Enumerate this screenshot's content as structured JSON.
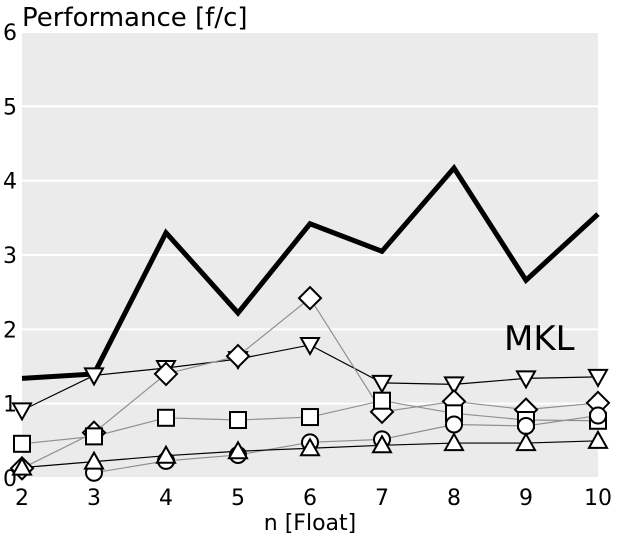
{
  "chart_data": {
    "type": "line",
    "title": "Performance [f/c]",
    "xlabel": "n [Float]",
    "ylabel": "",
    "xlim": [
      2,
      10
    ],
    "ylim": [
      0,
      6
    ],
    "xticks": [
      2,
      3,
      4,
      5,
      6,
      7,
      8,
      9,
      10
    ],
    "yticks": [
      0,
      1,
      2,
      3,
      4,
      5,
      6
    ],
    "grid": true,
    "background": "#ebebeb",
    "series": [
      {
        "name": "MKL",
        "marker": "none",
        "color": "#000000",
        "width": 5,
        "x": [
          2,
          3,
          4,
          5,
          6,
          7,
          8,
          9,
          10
        ],
        "y": [
          1.34,
          1.4,
          3.3,
          2.22,
          3.42,
          3.05,
          4.17,
          2.66,
          3.55
        ]
      },
      {
        "marker": "triangle-down",
        "color": "#000000",
        "width": 1.2,
        "x": [
          2,
          3,
          4,
          5,
          6,
          7,
          8,
          9,
          10
        ],
        "y": [
          0.91,
          1.38,
          1.48,
          1.6,
          1.79,
          1.28,
          1.26,
          1.34,
          1.36
        ]
      },
      {
        "marker": "diamond",
        "color": "#909090",
        "width": 1.2,
        "x": [
          2,
          3,
          4,
          5,
          6,
          7,
          8,
          9,
          10
        ],
        "y": [
          0.13,
          0.61,
          1.4,
          1.64,
          2.42,
          0.89,
          1.03,
          0.92,
          1.01
        ]
      },
      {
        "marker": "square",
        "color": "#909090",
        "width": 1.2,
        "x": [
          2,
          3,
          4,
          5,
          6,
          7,
          8,
          9,
          10
        ],
        "y": [
          0.46,
          0.56,
          0.81,
          0.78,
          0.82,
          1.04,
          0.87,
          0.78,
          0.77
        ]
      },
      {
        "marker": "circle",
        "color": "#909090",
        "width": 1.2,
        "x": [
          3,
          4,
          5,
          6,
          7,
          8,
          9,
          10
        ],
        "y": [
          0.07,
          0.23,
          0.31,
          0.48,
          0.52,
          0.72,
          0.7,
          0.84
        ]
      },
      {
        "marker": "triangle-up",
        "color": "#000000",
        "width": 1.2,
        "x": [
          2,
          3,
          4,
          5,
          6,
          7,
          8,
          9,
          10
        ],
        "y": [
          0.14,
          0.22,
          0.3,
          0.36,
          0.4,
          0.44,
          0.47,
          0.47,
          0.5
        ]
      }
    ]
  }
}
